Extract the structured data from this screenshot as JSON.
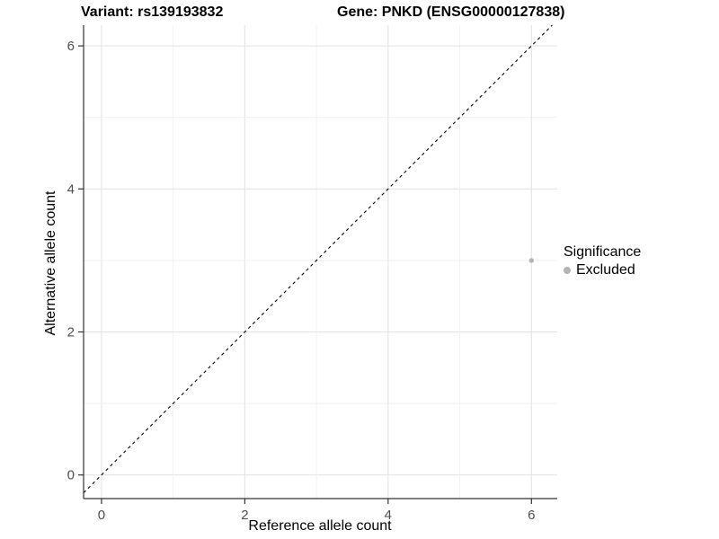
{
  "title": {
    "left": "Variant: rs139193832",
    "right": "Gene: PNKD (ENSG00000127838)"
  },
  "chart_data": {
    "type": "scatter",
    "title": "Variant: rs139193832    Gene: PNKD (ENSG00000127838)",
    "xlabel": "Reference allele count",
    "ylabel": "Alternative allele count",
    "xlim": [
      -0.25,
      6.36
    ],
    "ylim": [
      -0.33,
      6.29
    ],
    "xticks": [
      0,
      2,
      4,
      6
    ],
    "yticks": [
      0,
      2,
      4,
      6
    ],
    "grid_positions": [
      0,
      1,
      2,
      3,
      4,
      5,
      6
    ],
    "grid": true,
    "identity_line": {
      "equation": "y = x",
      "style": "dashed",
      "color": "#000000"
    },
    "series": [
      {
        "name": "Excluded",
        "color": "#b4b4b4",
        "points": [
          {
            "x": 6,
            "y": 3
          }
        ]
      }
    ],
    "legend": {
      "title": "Significance",
      "position": "right",
      "items": [
        {
          "label": "Excluded",
          "color": "#b4b4b4"
        }
      ]
    }
  },
  "colors": {
    "background": "#ffffff",
    "axis_line": "#333333",
    "tick_text": "#4d4d4d",
    "grid_major": "#e4e4e4",
    "grid_minor": "#efefef",
    "point": "#b4b4b4"
  }
}
